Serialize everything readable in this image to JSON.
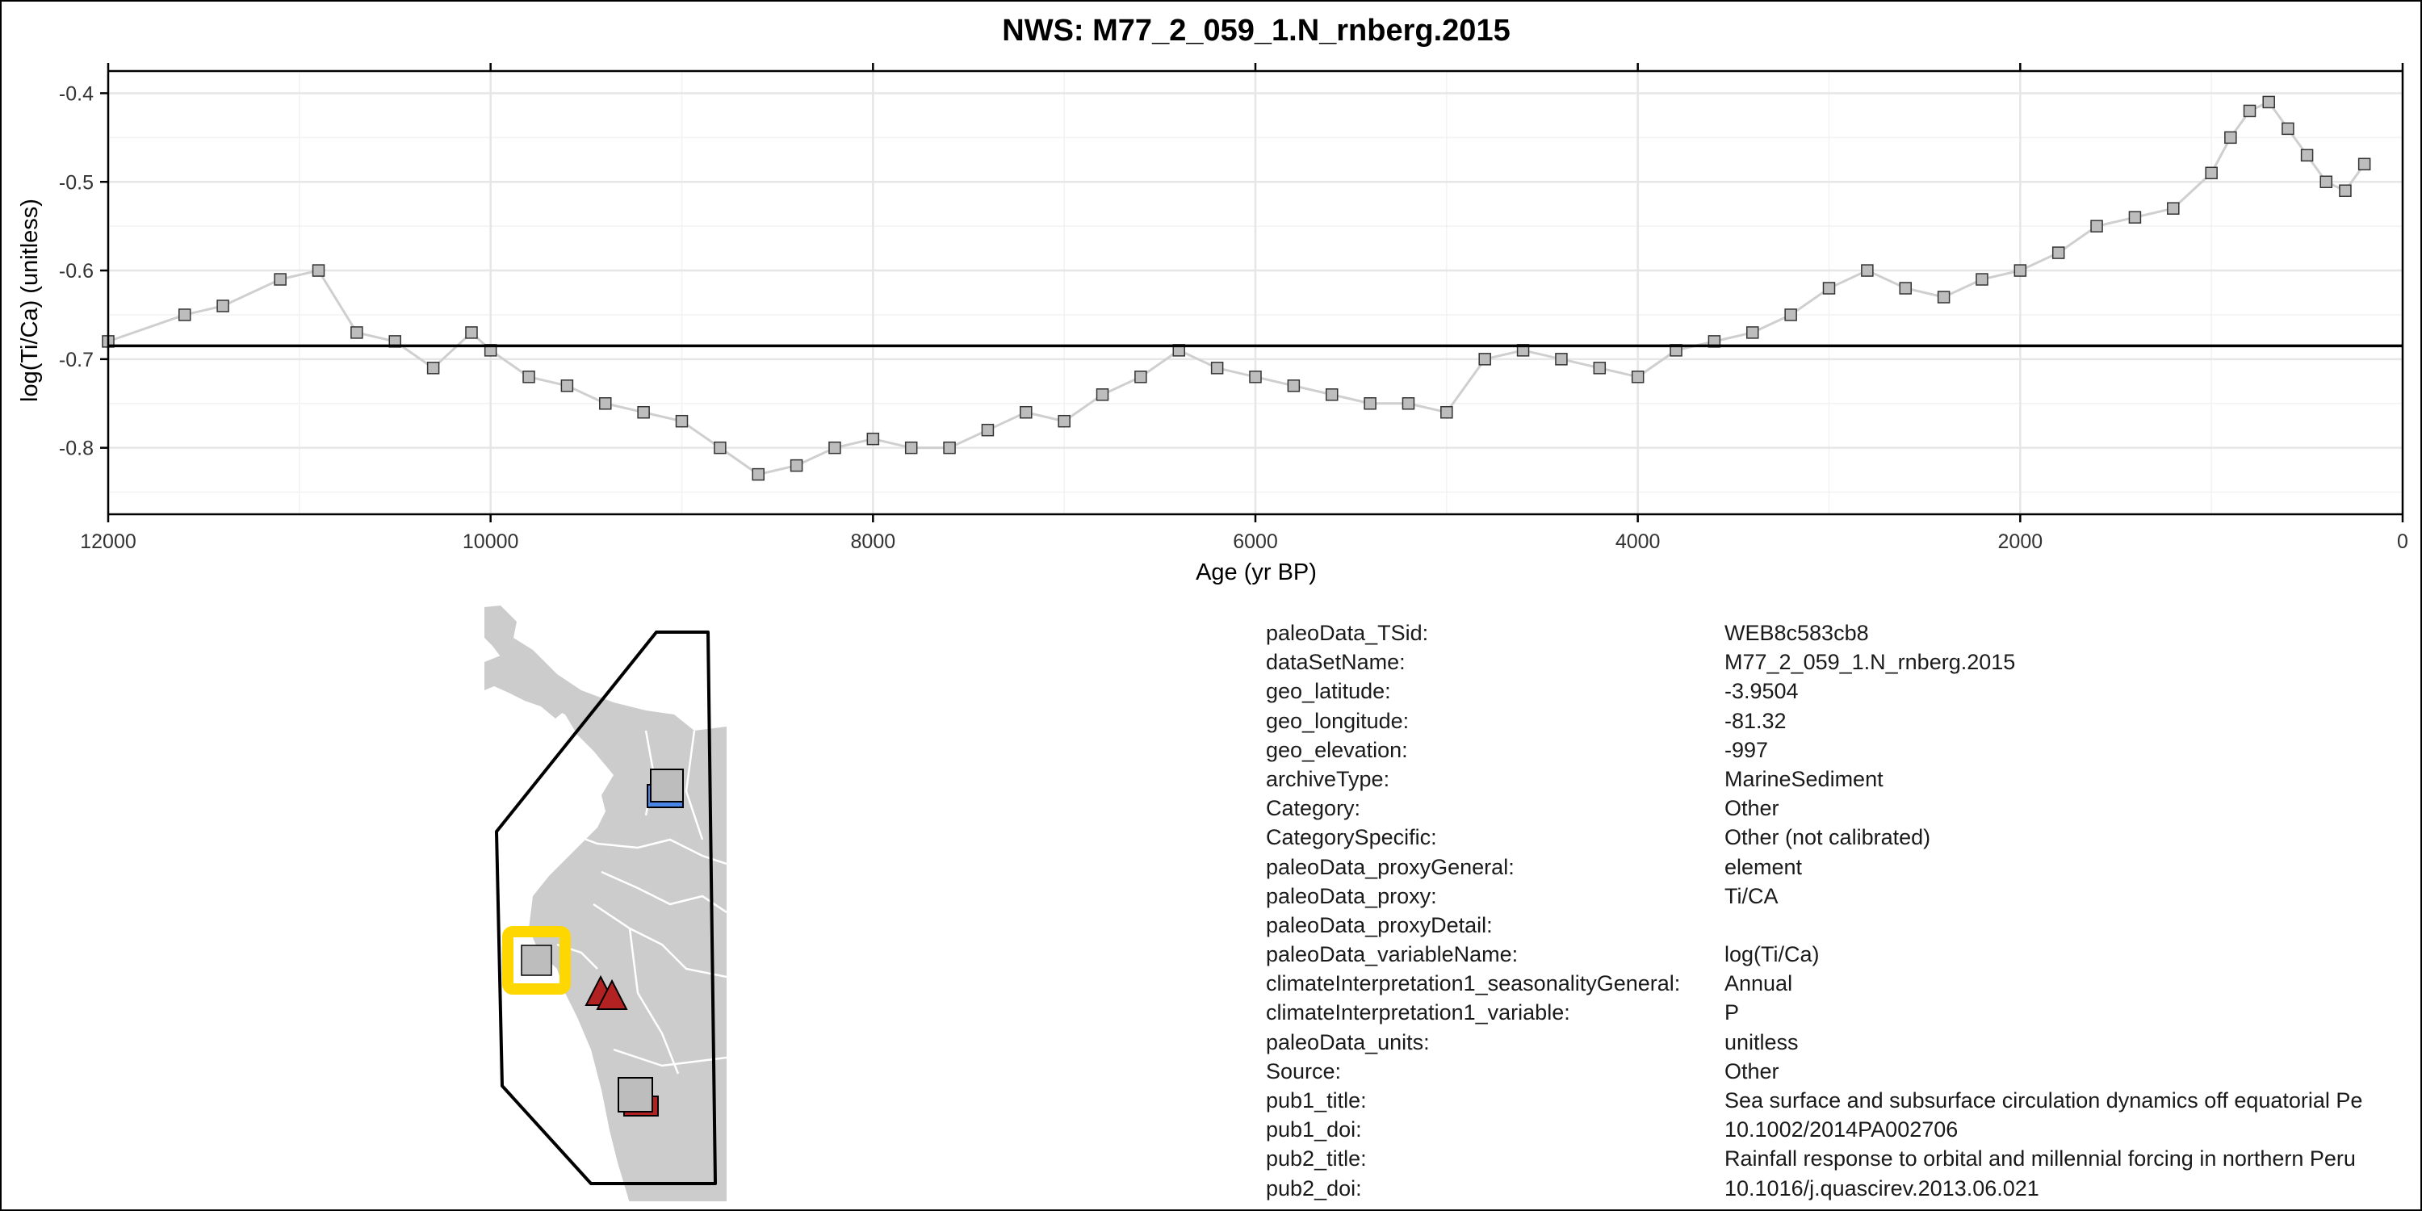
{
  "chart_data": {
    "type": "scatter",
    "title": "NWS: M77_2_059_1.N_rnberg.2015",
    "xlabel": "Age (yr BP)",
    "ylabel": "log(Ti/Ca) (unitless)",
    "xlim": [
      12000,
      0
    ],
    "ylim": [
      -0.875,
      -0.375
    ],
    "x_reversed": true,
    "x_ticks": [
      12000,
      10000,
      8000,
      6000,
      4000,
      2000,
      0
    ],
    "y_ticks": [
      -0.4,
      -0.5,
      -0.6,
      -0.7,
      -0.8
    ],
    "reference_line_y": -0.685,
    "grid": true,
    "marker": "square",
    "marker_color": "#bdbdbd",
    "line_color": "#cfcfcf",
    "series": [
      {
        "x": [
          12000,
          11600,
          11400,
          11100,
          10900,
          10700,
          10500,
          10300,
          10100,
          10000,
          9800,
          9600,
          9400,
          9200,
          9000,
          8800,
          8600,
          8400,
          8200,
          8000,
          7800,
          7600,
          7400,
          7200,
          7000,
          6800,
          6600,
          6400,
          6200,
          6000,
          5800,
          5600,
          5400,
          5200,
          5000,
          4800,
          4600,
          4400,
          4200,
          4000,
          3800,
          3600,
          3400,
          3200,
          3000,
          2800,
          2600,
          2400,
          2200,
          2000,
          1800,
          1600,
          1400,
          1200,
          1000,
          900,
          800,
          700,
          600,
          500,
          400,
          300,
          200
        ],
        "y": [
          -0.68,
          -0.65,
          -0.64,
          -0.61,
          -0.6,
          -0.67,
          -0.68,
          -0.71,
          -0.67,
          -0.69,
          -0.72,
          -0.73,
          -0.75,
          -0.76,
          -0.77,
          -0.8,
          -0.83,
          -0.82,
          -0.8,
          -0.79,
          -0.8,
          -0.8,
          -0.78,
          -0.76,
          -0.77,
          -0.74,
          -0.72,
          -0.69,
          -0.71,
          -0.72,
          -0.73,
          -0.74,
          -0.75,
          -0.75,
          -0.76,
          -0.7,
          -0.69,
          -0.7,
          -0.71,
          -0.72,
          -0.69,
          -0.68,
          -0.67,
          -0.65,
          -0.62,
          -0.6,
          -0.62,
          -0.63,
          -0.61,
          -0.6,
          -0.58,
          -0.55,
          -0.54,
          -0.53,
          -0.49,
          -0.45,
          -0.42,
          -0.41,
          -0.44,
          -0.47,
          -0.5,
          -0.51,
          -0.48
        ]
      }
    ]
  },
  "metadata": [
    {
      "key": "paleoData_TSid:",
      "value": "WEB8c583cb8"
    },
    {
      "key": "dataSetName:",
      "value": "M77_2_059_1.N_rnberg.2015"
    },
    {
      "key": "geo_latitude:",
      "value": "-3.9504"
    },
    {
      "key": "geo_longitude:",
      "value": "-81.32"
    },
    {
      "key": "geo_elevation:",
      "value": "-997"
    },
    {
      "key": "archiveType:",
      "value": "MarineSediment"
    },
    {
      "key": "Category:",
      "value": "Other"
    },
    {
      "key": "CategorySpecific:",
      "value": "Other (not calibrated)"
    },
    {
      "key": "paleoData_proxyGeneral:",
      "value": "element"
    },
    {
      "key": "paleoData_proxy:",
      "value": "Ti/CA"
    },
    {
      "key": "paleoData_proxyDetail:",
      "value": ""
    },
    {
      "key": "paleoData_variableName:",
      "value": "log(Ti/Ca)"
    },
    {
      "key": "climateInterpretation1_seasonalityGeneral:",
      "value": "Annual"
    },
    {
      "key": "climateInterpretation1_variable:",
      "value": "P"
    },
    {
      "key": "paleoData_units:",
      "value": "unitless"
    },
    {
      "key": "Source:",
      "value": "Other"
    },
    {
      "key": "pub1_title:",
      "value": "Sea surface and subsurface circulation dynamics off equatorial Pe"
    },
    {
      "key": "pub1_doi:",
      "value": "10.1002/2014PA002706"
    },
    {
      "key": "pub2_title:",
      "value": "Rainfall response to orbital and millennial forcing in northern Peru"
    },
    {
      "key": "pub2_doi:",
      "value": "10.1016/j.quascirev.2013.06.021"
    }
  ],
  "map": {
    "land_color": "#cccccc",
    "border_color": "#ffffff",
    "highlight_color": "#ffd700",
    "triangle_color": "#b22222",
    "blue_color": "#4a86e8"
  }
}
